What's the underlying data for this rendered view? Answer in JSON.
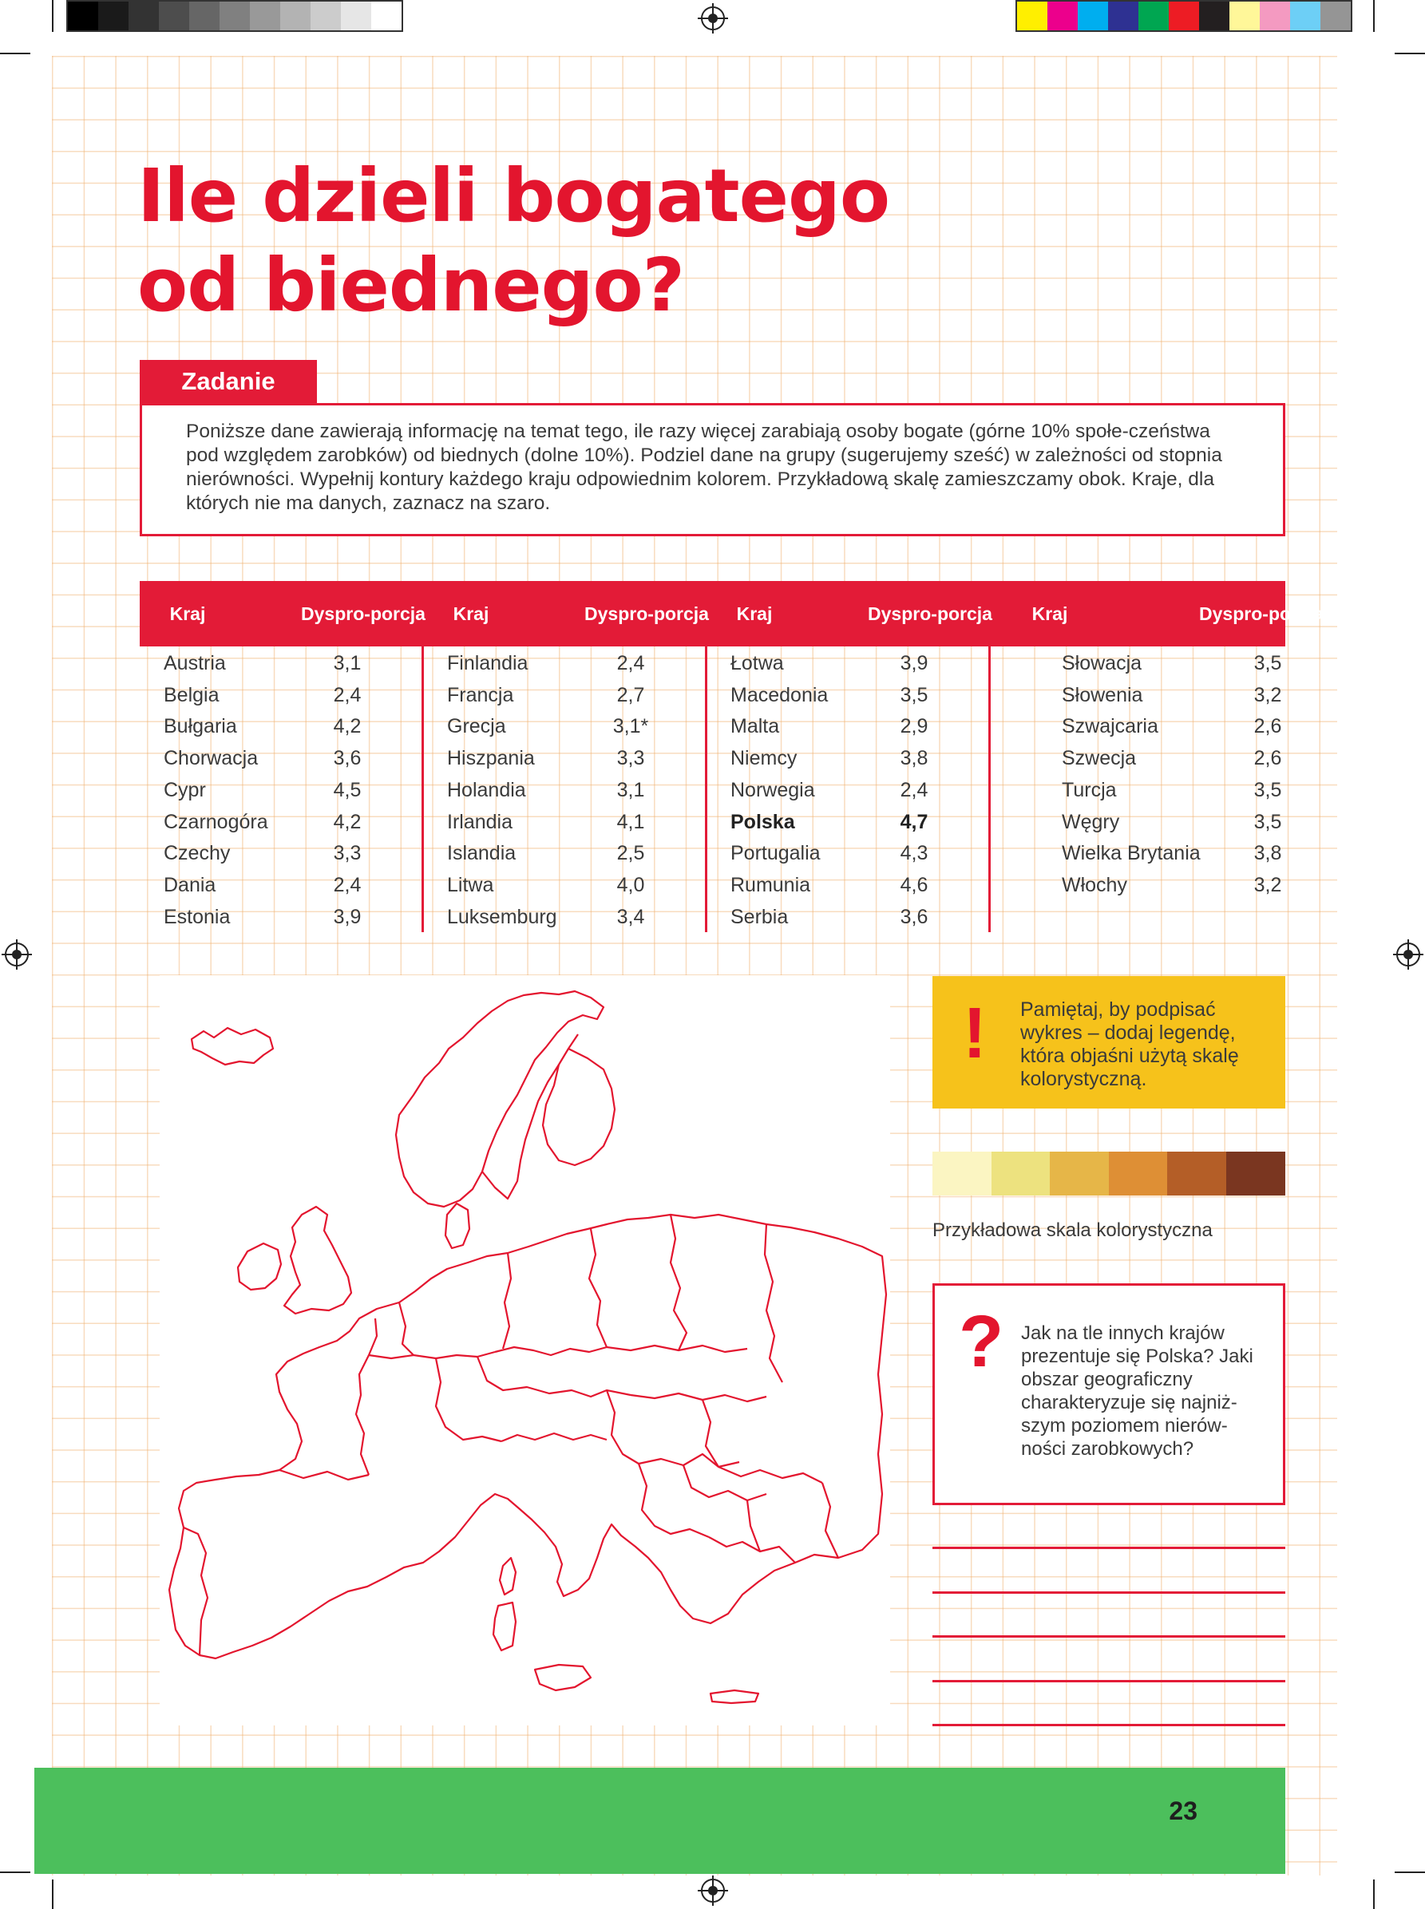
{
  "print_marks": {
    "gray_swatches": [
      "#000000",
      "#1a1a1a",
      "#333333",
      "#4d4d4d",
      "#666666",
      "#808080",
      "#999999",
      "#b3b3b3",
      "#cccccc",
      "#e6e6e6",
      "#ffffff"
    ],
    "color_swatches": [
      "#ffef00",
      "#ec008c",
      "#00aeef",
      "#2e3192",
      "#00a651",
      "#ed1c24",
      "#231f20",
      "#fff799",
      "#f49ac1",
      "#6dcff6",
      "#959595"
    ]
  },
  "title": {
    "line1": "Ile dzieli bogatego",
    "line2": "od biednego?"
  },
  "task": {
    "label": "Zadanie",
    "text": "Poniższe dane zawierają informację na temat tego, ile razy więcej zarabiają osoby bogate (górne 10% społe-czeństwa pod względem zarobków) od biednych (dolne 10%). Podziel dane na grupy (sugerujemy sześć) w zależności od stopnia nierówności. Wypełnij kontury każdego kraju odpowiednim kolorem. Przykładową skalę zamieszczamy obok. Kraje, dla których nie ma danych, zaznacz na szaro."
  },
  "table": {
    "header_country": "Kraj",
    "header_value_1": "Dyspro-",
    "header_value_2": "porcja",
    "columns": [
      [
        {
          "country": "Austria",
          "value": "3,1"
        },
        {
          "country": "Belgia",
          "value": "2,4"
        },
        {
          "country": "Bułgaria",
          "value": "4,2"
        },
        {
          "country": "Chorwacja",
          "value": "3,6"
        },
        {
          "country": "Cypr",
          "value": "4,5"
        },
        {
          "country": "Czarnogóra",
          "value": "4,2"
        },
        {
          "country": "Czechy",
          "value": "3,3"
        },
        {
          "country": "Dania",
          "value": "2,4"
        },
        {
          "country": "Estonia",
          "value": "3,9"
        }
      ],
      [
        {
          "country": "Finlandia",
          "value": "2,4"
        },
        {
          "country": "Francja",
          "value": "2,7"
        },
        {
          "country": "Grecja",
          "value": "3,1*"
        },
        {
          "country": "Hiszpania",
          "value": "3,3"
        },
        {
          "country": "Holandia",
          "value": "3,1"
        },
        {
          "country": "Irlandia",
          "value": "4,1"
        },
        {
          "country": "Islandia",
          "value": "2,5"
        },
        {
          "country": "Litwa",
          "value": "4,0"
        },
        {
          "country": "Luksemburg",
          "value": "3,4"
        }
      ],
      [
        {
          "country": "Łotwa",
          "value": "3,9"
        },
        {
          "country": "Macedonia",
          "value": "3,5"
        },
        {
          "country": "Malta",
          "value": "2,9"
        },
        {
          "country": "Niemcy",
          "value": "3,8"
        },
        {
          "country": "Norwegia",
          "value": "2,4"
        },
        {
          "country": "Polska",
          "value": "4,7",
          "bold": true
        },
        {
          "country": "Portugalia",
          "value": "4,3"
        },
        {
          "country": "Rumunia",
          "value": "4,6"
        },
        {
          "country": "Serbia",
          "value": "3,6"
        }
      ],
      [
        {
          "country": "Słowacja",
          "value": "3,5"
        },
        {
          "country": "Słowenia",
          "value": "3,2"
        },
        {
          "country": "Szwajcaria",
          "value": "2,6"
        },
        {
          "country": "Szwecja",
          "value": "2,6"
        },
        {
          "country": "Turcja",
          "value": "3,5"
        },
        {
          "country": "Węgry",
          "value": "3,5"
        },
        {
          "country": "Wielka Brytania",
          "value": "3,8"
        },
        {
          "country": "Włochy",
          "value": "3,2"
        }
      ]
    ]
  },
  "reminder": {
    "mark": "!",
    "text": "Pamiętaj, by podpisać wykres – dodaj legendę, która objaśni użytą skalę kolorystyczną."
  },
  "color_scale": {
    "colors": [
      "#fbf5c2",
      "#ede27f",
      "#e6b648",
      "#de8f35",
      "#b45e27",
      "#7a3620"
    ],
    "label": "Przykładowa skala kolorystyczna"
  },
  "question": {
    "mark": "?",
    "text": "Jak na tle innych krajów prezentuje się Polska? Jaki obszar geograficzny charakteryzuje się najniż-szym poziomem nierów-ności zarobkowych?"
  },
  "answer_lines": 5,
  "page_number": "23",
  "map": {
    "outline_color": "#e3152e"
  }
}
